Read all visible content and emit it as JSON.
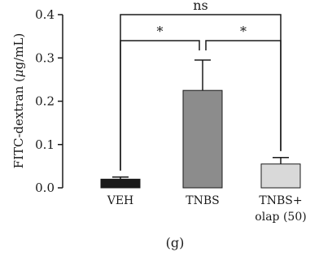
{
  "chart_data": {
    "type": "bar",
    "ylabel_parts": [
      "FITC-dextran (",
      "μ",
      "g/mL)"
    ],
    "categories": [
      {
        "lines": [
          "VEH"
        ]
      },
      {
        "lines": [
          "TNBS"
        ]
      },
      {
        "lines": [
          "TNBS+",
          "olap (50)"
        ]
      }
    ],
    "values": [
      0.02,
      0.225,
      0.055
    ],
    "errors": [
      0.005,
      0.07,
      0.015
    ],
    "bar_colors": [
      "#1a1a1a",
      "#8c8c8c",
      "#d9d9d9"
    ],
    "ylim": [
      0,
      0.4
    ],
    "yticks": [
      0.0,
      0.1,
      0.2,
      0.3,
      0.4
    ],
    "ytick_labels": [
      "0.0",
      "0.1",
      "0.2",
      "0.3",
      "0.4"
    ],
    "comparisons": [
      {
        "from": 0,
        "to": 2,
        "label": "ns",
        "level": 0.4
      },
      {
        "from": 0,
        "to": 1,
        "label": "*",
        "level": 0.34
      },
      {
        "from": 1,
        "to": 2,
        "label": "*",
        "level": 0.34
      }
    ],
    "panel_label": "(g)"
  }
}
